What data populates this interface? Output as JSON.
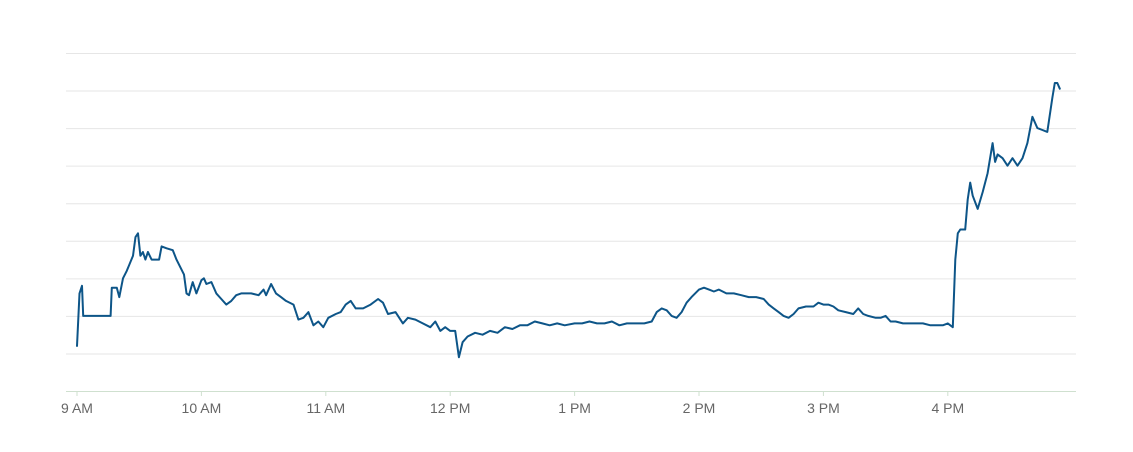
{
  "chart_data": {
    "type": "line",
    "title": "",
    "xlabel": "",
    "ylabel": "",
    "x_ticks": [
      {
        "label": "9 AM",
        "hour": 9
      },
      {
        "label": "10 AM",
        "hour": 10
      },
      {
        "label": "11 AM",
        "hour": 11
      },
      {
        "label": "12 PM",
        "hour": 12
      },
      {
        "label": "1 PM",
        "hour": 13
      },
      {
        "label": "2 PM",
        "hour": 14
      },
      {
        "label": "3 PM",
        "hour": 15
      },
      {
        "label": "4 PM",
        "hour": 16
      }
    ],
    "xlim": [
      9.0,
      16.95
    ],
    "ylim": [
      0,
      9
    ],
    "y_gridlines": [
      1,
      2,
      3,
      4,
      5,
      6,
      7,
      8,
      9
    ],
    "y_tick_labels_shown": false,
    "grid": true,
    "legend": "none",
    "colors": {
      "line": "#0d5588",
      "grid": "#e6e6e6",
      "axis": "#cfe0cf",
      "tick_label": "#666666"
    },
    "series": [
      {
        "points": [
          [
            9.0,
            1.2
          ],
          [
            9.02,
            2.6
          ],
          [
            9.04,
            2.8
          ],
          [
            9.05,
            2.0
          ],
          [
            9.1,
            2.0
          ],
          [
            9.2,
            2.0
          ],
          [
            9.27,
            2.0
          ],
          [
            9.28,
            2.75
          ],
          [
            9.32,
            2.75
          ],
          [
            9.34,
            2.5
          ],
          [
            9.37,
            3.0
          ],
          [
            9.4,
            3.2
          ],
          [
            9.45,
            3.6
          ],
          [
            9.47,
            4.1
          ],
          [
            9.49,
            4.2
          ],
          [
            9.51,
            3.6
          ],
          [
            9.53,
            3.7
          ],
          [
            9.55,
            3.5
          ],
          [
            9.57,
            3.7
          ],
          [
            9.6,
            3.5
          ],
          [
            9.66,
            3.5
          ],
          [
            9.68,
            3.85
          ],
          [
            9.72,
            3.8
          ],
          [
            9.77,
            3.75
          ],
          [
            9.8,
            3.5
          ],
          [
            9.86,
            3.1
          ],
          [
            9.88,
            2.6
          ],
          [
            9.9,
            2.55
          ],
          [
            9.93,
            2.9
          ],
          [
            9.96,
            2.6
          ],
          [
            10.0,
            2.95
          ],
          [
            10.02,
            3.0
          ],
          [
            10.04,
            2.85
          ],
          [
            10.08,
            2.9
          ],
          [
            10.12,
            2.6
          ],
          [
            10.16,
            2.45
          ],
          [
            10.2,
            2.3
          ],
          [
            10.24,
            2.4
          ],
          [
            10.28,
            2.55
          ],
          [
            10.32,
            2.6
          ],
          [
            10.4,
            2.6
          ],
          [
            10.46,
            2.55
          ],
          [
            10.5,
            2.7
          ],
          [
            10.52,
            2.55
          ],
          [
            10.56,
            2.85
          ],
          [
            10.6,
            2.6
          ],
          [
            10.64,
            2.5
          ],
          [
            10.68,
            2.4
          ],
          [
            10.74,
            2.3
          ],
          [
            10.78,
            1.9
          ],
          [
            10.82,
            1.95
          ],
          [
            10.86,
            2.1
          ],
          [
            10.9,
            1.75
          ],
          [
            10.94,
            1.85
          ],
          [
            10.98,
            1.7
          ],
          [
            11.02,
            1.95
          ],
          [
            11.08,
            2.05
          ],
          [
            11.12,
            2.1
          ],
          [
            11.16,
            2.3
          ],
          [
            11.2,
            2.4
          ],
          [
            11.24,
            2.2
          ],
          [
            11.3,
            2.2
          ],
          [
            11.36,
            2.3
          ],
          [
            11.42,
            2.45
          ],
          [
            11.46,
            2.35
          ],
          [
            11.5,
            2.05
          ],
          [
            11.56,
            2.1
          ],
          [
            11.62,
            1.8
          ],
          [
            11.66,
            1.95
          ],
          [
            11.72,
            1.9
          ],
          [
            11.78,
            1.8
          ],
          [
            11.84,
            1.7
          ],
          [
            11.88,
            1.85
          ],
          [
            11.92,
            1.6
          ],
          [
            11.96,
            1.7
          ],
          [
            12.0,
            1.6
          ],
          [
            12.04,
            1.6
          ],
          [
            12.07,
            0.9
          ],
          [
            12.1,
            1.3
          ],
          [
            12.14,
            1.45
          ],
          [
            12.2,
            1.55
          ],
          [
            12.26,
            1.5
          ],
          [
            12.32,
            1.6
          ],
          [
            12.38,
            1.55
          ],
          [
            12.44,
            1.7
          ],
          [
            12.5,
            1.65
          ],
          [
            12.56,
            1.75
          ],
          [
            12.62,
            1.75
          ],
          [
            12.68,
            1.85
          ],
          [
            12.74,
            1.8
          ],
          [
            12.8,
            1.75
          ],
          [
            12.86,
            1.8
          ],
          [
            12.92,
            1.75
          ],
          [
            13.0,
            1.8
          ],
          [
            13.06,
            1.8
          ],
          [
            13.12,
            1.85
          ],
          [
            13.18,
            1.8
          ],
          [
            13.24,
            1.8
          ],
          [
            13.3,
            1.85
          ],
          [
            13.36,
            1.75
          ],
          [
            13.42,
            1.8
          ],
          [
            13.5,
            1.8
          ],
          [
            13.56,
            1.8
          ],
          [
            13.62,
            1.85
          ],
          [
            13.66,
            2.1
          ],
          [
            13.7,
            2.2
          ],
          [
            13.74,
            2.15
          ],
          [
            13.78,
            2.0
          ],
          [
            13.82,
            1.95
          ],
          [
            13.86,
            2.1
          ],
          [
            13.9,
            2.35
          ],
          [
            13.94,
            2.5
          ],
          [
            14.0,
            2.7
          ],
          [
            14.04,
            2.75
          ],
          [
            14.08,
            2.7
          ],
          [
            14.12,
            2.65
          ],
          [
            14.16,
            2.7
          ],
          [
            14.22,
            2.6
          ],
          [
            14.28,
            2.6
          ],
          [
            14.34,
            2.55
          ],
          [
            14.4,
            2.5
          ],
          [
            14.46,
            2.5
          ],
          [
            14.52,
            2.45
          ],
          [
            14.56,
            2.3
          ],
          [
            14.6,
            2.2
          ],
          [
            14.64,
            2.1
          ],
          [
            14.68,
            2.0
          ],
          [
            14.72,
            1.95
          ],
          [
            14.76,
            2.05
          ],
          [
            14.8,
            2.2
          ],
          [
            14.86,
            2.25
          ],
          [
            14.92,
            2.25
          ],
          [
            14.96,
            2.35
          ],
          [
            15.0,
            2.3
          ],
          [
            15.04,
            2.3
          ],
          [
            15.08,
            2.25
          ],
          [
            15.12,
            2.15
          ],
          [
            15.18,
            2.1
          ],
          [
            15.24,
            2.05
          ],
          [
            15.28,
            2.2
          ],
          [
            15.32,
            2.05
          ],
          [
            15.36,
            2.0
          ],
          [
            15.42,
            1.95
          ],
          [
            15.46,
            1.95
          ],
          [
            15.5,
            2.0
          ],
          [
            15.54,
            1.85
          ],
          [
            15.58,
            1.85
          ],
          [
            15.64,
            1.8
          ],
          [
            15.7,
            1.8
          ],
          [
            15.76,
            1.8
          ],
          [
            15.8,
            1.8
          ],
          [
            15.86,
            1.75
          ],
          [
            15.92,
            1.75
          ],
          [
            15.96,
            1.75
          ],
          [
            16.0,
            1.8
          ],
          [
            16.04,
            1.7
          ],
          [
            16.06,
            3.5
          ],
          [
            16.08,
            4.2
          ],
          [
            16.1,
            4.3
          ],
          [
            16.14,
            4.3
          ],
          [
            16.16,
            5.1
          ],
          [
            16.18,
            5.55
          ],
          [
            16.2,
            5.2
          ],
          [
            16.24,
            4.85
          ],
          [
            16.28,
            5.3
          ],
          [
            16.32,
            5.8
          ],
          [
            16.36,
            6.6
          ],
          [
            16.38,
            6.1
          ],
          [
            16.4,
            6.3
          ],
          [
            16.44,
            6.2
          ],
          [
            16.48,
            6.0
          ],
          [
            16.52,
            6.2
          ],
          [
            16.56,
            6.0
          ],
          [
            16.6,
            6.2
          ],
          [
            16.64,
            6.6
          ],
          [
            16.68,
            7.3
          ],
          [
            16.72,
            7.0
          ],
          [
            16.76,
            6.95
          ],
          [
            16.8,
            6.9
          ],
          [
            16.84,
            7.8
          ],
          [
            16.86,
            8.2
          ],
          [
            16.88,
            8.2
          ],
          [
            16.9,
            8.05
          ]
        ]
      }
    ]
  }
}
